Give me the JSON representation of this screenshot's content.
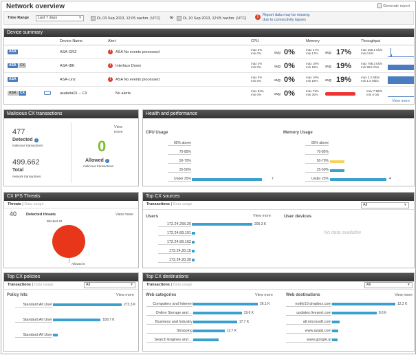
{
  "title": "Network overview",
  "generate_report": "Generate report",
  "filter": {
    "time_range_label": "Time Range",
    "time_range_value": "Last 7 days",
    "from": "Di, 03 Sep 2013, 12:05 nachm. (UTC)",
    "to_label": "to",
    "to": "Di, 10 Sep 2013, 12:05 nachm. (UTC)",
    "warning_line1": "Report data may be missing",
    "warning_line2": "due to connectivity lapses"
  },
  "device_summary": {
    "title": "Device summary",
    "headers": {
      "device": "Device Name",
      "alert": "Alert",
      "cpu": "CPU",
      "memory": "Memory",
      "throughput": "Throughput"
    },
    "rows": [
      {
        "badges": [
          "ASA"
        ],
        "name": "ASA-GRZ",
        "alert": "ASA No events processed",
        "alert_error": true,
        "cpu_max": "max 3%",
        "cpu_min": "min 0%",
        "cpu_avg": "0%",
        "mem_max": "max 17%",
        "mem_min": "min 17%",
        "mem_avg": "17%",
        "tp1": "max 258.1 Kb/s",
        "tp2": "min 0 b/s"
      },
      {
        "badges": [
          "ASA",
          "CX"
        ],
        "name": "ASA-IBK",
        "alert": "Interface Down",
        "alert_error": true,
        "cpu_max": "max 3%",
        "cpu_min": "min 0%",
        "cpu_avg": "0%",
        "mem_max": "max 19%",
        "mem_min": "min 18%",
        "mem_avg": "19%",
        "tp1": "max 788.3 Kb/s",
        "tp2": "min 854 Kb/s"
      },
      {
        "badges": [
          "ASA"
        ],
        "name": "ASA-Linz",
        "alert": "ASA No events processed",
        "alert_error": true,
        "cpu_max": "max 3%",
        "cpu_min": "min 0%",
        "cpu_avg": "0%",
        "mem_max": "max 19%",
        "mem_min": "min 19%",
        "mem_avg": "19%",
        "tp1": "max 2.2 Mb/s",
        "tp2": "min 1.5 Mb/s"
      },
      {
        "badges": [
          "ASA",
          "CX"
        ],
        "name": "asabeta01 -- CX",
        "alert": "No alerts",
        "alert_error": false,
        "cpu_max": "max 84%",
        "cpu_min": "min 0%",
        "cpu_avg": "0%",
        "mem_max": "max 73%",
        "mem_min": "min 30%",
        "mem_avg": "",
        "tp1": "max 7 Mb/s",
        "tp2": "min 0 b/s"
      }
    ],
    "avg_label": "avg",
    "view_more": "View more"
  },
  "malicious": {
    "title": "Malicious CX transactions",
    "detected_num": "477",
    "detected_label": "Detected",
    "detected_sub": "malicious transactions",
    "total_num": "499.662",
    "total_label": "Total",
    "total_sub": "network transactions",
    "view_more": "View more",
    "allowed_num": "0",
    "allowed_label": "Allowed",
    "allowed_sub": "malicious transactions"
  },
  "health": {
    "title": "Health and performance",
    "cpu_title": "CPU Usage",
    "mem_title": "Memory Usage",
    "cats": [
      "85% above",
      "70-85%",
      "50-70%",
      "25-50%",
      "Under 25%"
    ],
    "cpu_values": [
      0,
      0,
      0,
      0,
      7
    ],
    "cpu_last_label": "7",
    "mem_values": [
      0,
      0,
      1,
      1,
      4
    ],
    "mem_colors": [
      "#ccc",
      "#ccc",
      "#f5d35c",
      "#3aa0d0",
      "#3aa0d0"
    ],
    "mem_last_label": "4"
  },
  "ips": {
    "title": "CX IPS Threats",
    "tab1": "Threats",
    "tab2": "Data usage",
    "count": "40",
    "count_label": "Detected threats",
    "view_more": "View more",
    "blocked": "Blocked 40",
    "allowed": "Allowed 0"
  },
  "sources": {
    "title": "Top CX sources",
    "tab1": "Transactions",
    "tab2": "Data usage",
    "filter": "All",
    "users_label": "Users",
    "view_more": "View more",
    "user_devices": "User devices",
    "no_data": "No data available",
    "rows": [
      {
        "label": "172.24.255.20",
        "value": 200.3,
        "text": "200.3 K"
      },
      {
        "label": "172.24.89.191",
        "value": 12,
        "text": ""
      },
      {
        "label": "172.24.89.162",
        "value": 10,
        "text": ""
      },
      {
        "label": "172.24.20.15",
        "value": 9,
        "text": ""
      },
      {
        "label": "172.24.20.30",
        "value": 6,
        "text": ""
      }
    ]
  },
  "policies": {
    "title": "Top CX policies",
    "tab1": "Transactions",
    "tab2": "Data usage",
    "filter": "All",
    "hits_label": "Policy hits",
    "view_more": "View more",
    "rows": [
      {
        "label": "Standard All User",
        "value": 273.3,
        "text": "273.3 K"
      },
      {
        "label": "Standard All User",
        "value": 189.7,
        "text": "189.7 K"
      },
      {
        "label": "Standard All User",
        "value": 20,
        "text": ""
      }
    ]
  },
  "destinations": {
    "title": "Top CX destinations",
    "tab1": "Transactions",
    "tab2": "Data usage",
    "filter": "All",
    "web_cat_label": "Web categories",
    "web_dest_label": "Web destinations",
    "view_more": "View more",
    "cats": [
      {
        "label": "Computers and Internet",
        "value": 26.1,
        "text": "26.1 K"
      },
      {
        "label": "Online Storage and ...",
        "value": 19.6,
        "text": "19.6 K"
      },
      {
        "label": "Business and Industry",
        "value": 17.7,
        "text": "17.7 K"
      },
      {
        "label": "Shopping",
        "value": 12.7,
        "text": "12.7 K"
      },
      {
        "label": "Search Engines and ...",
        "value": 10.3,
        "text": ""
      }
    ],
    "dests": [
      {
        "label": "notify10.dropbox.com",
        "value": 12.2,
        "text": "12.2 K"
      },
      {
        "label": "updates.liveport.com",
        "value": 8.6,
        "text": "8.6 K"
      },
      {
        "label": "all.microsoft.com",
        "value": 1.5,
        "text": ""
      },
      {
        "label": "www.azaat.com",
        "value": 1.2,
        "text": ""
      },
      {
        "label": "www.google.at",
        "value": 1.0,
        "text": ""
      }
    ]
  }
}
